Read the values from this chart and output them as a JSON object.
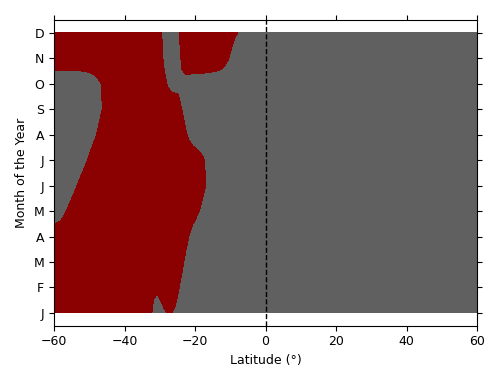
{
  "title": "",
  "xlabel": "Latitude (°)",
  "ylabel": "Month of the Year",
  "lat_min": -60,
  "lat_max": 60,
  "months": [
    "J",
    "F",
    "M",
    "A",
    "M",
    "J",
    "J",
    "A",
    "S",
    "O",
    "N",
    "D"
  ],
  "red_color": "#8B0000",
  "grey_color": "#606060",
  "background_color": "#ffffff",
  "dashed_line_lat": 0,
  "smooth_sigma": 1.5,
  "grid_rows": [
    [
      1,
      1,
      1,
      1,
      1,
      1,
      1,
      1,
      1,
      1,
      1,
      1,
      0,
      0,
      0,
      0,
      0,
      0,
      1,
      1,
      0,
      0,
      0,
      1,
      1,
      1,
      1,
      1,
      0,
      0,
      0,
      0,
      0,
      0,
      0,
      0,
      0,
      0,
      0,
      0,
      0,
      0,
      0,
      0,
      0,
      0,
      0,
      0,
      0,
      0,
      0,
      0,
      0,
      0,
      0,
      0,
      0,
      0,
      0,
      0,
      0,
      0,
      0,
      0,
      0,
      0,
      0,
      0,
      0,
      0,
      0,
      0,
      0,
      0,
      0,
      0,
      0,
      0,
      0,
      0,
      0,
      0,
      0,
      0,
      0,
      0,
      0,
      0,
      0,
      0,
      0,
      0,
      0,
      0,
      0,
      0,
      0,
      0,
      0,
      0,
      0,
      0,
      0,
      0,
      0,
      0,
      0,
      0,
      0,
      0,
      0,
      0,
      0,
      0,
      0,
      0,
      0,
      0,
      0,
      0
    ],
    [
      1,
      1,
      1,
      1,
      1,
      1,
      1,
      1,
      1,
      1,
      1,
      1,
      1,
      1,
      1,
      1,
      1,
      1,
      1,
      1,
      1,
      1,
      1,
      1,
      1,
      1,
      0,
      0,
      0,
      0,
      1,
      1,
      1,
      1,
      1,
      1,
      0,
      0,
      0,
      0,
      0,
      0,
      0,
      0,
      0,
      0,
      0,
      0,
      0,
      0,
      0,
      0,
      0,
      0,
      0,
      0,
      0,
      0,
      0,
      0,
      0,
      0,
      0,
      0,
      0,
      0,
      0,
      0,
      0,
      0,
      0,
      0,
      0,
      0,
      0,
      0,
      0,
      0,
      0,
      0,
      0,
      0,
      0,
      0,
      0,
      0,
      0,
      0,
      0,
      0,
      0,
      0,
      0,
      0,
      0,
      0,
      0,
      0,
      0,
      0,
      0,
      0,
      0,
      0,
      0,
      0,
      0,
      0,
      0,
      0,
      0,
      0,
      0,
      0,
      0,
      0,
      0,
      0,
      0,
      0
    ],
    [
      1,
      1,
      1,
      1,
      1,
      1,
      1,
      1,
      1,
      1,
      1,
      1,
      1,
      1,
      1,
      1,
      1,
      1,
      1,
      1,
      1,
      1,
      1,
      1,
      1,
      1,
      1,
      1,
      1,
      1,
      1,
      1,
      1,
      1,
      1,
      1,
      1,
      0,
      0,
      0,
      0,
      0,
      0,
      0,
      0,
      0,
      0,
      0,
      0,
      0,
      0,
      0,
      0,
      0,
      0,
      0,
      0,
      0,
      0,
      0,
      0,
      0,
      0,
      0,
      0,
      0,
      0,
      0,
      0,
      0,
      0,
      0,
      0,
      0,
      0,
      0,
      0,
      0,
      0,
      0,
      0,
      0,
      0,
      0,
      0,
      0,
      0,
      0,
      0,
      0,
      0,
      0,
      0,
      0,
      0,
      0,
      0,
      0,
      0,
      0,
      0,
      0,
      0,
      0,
      0,
      0,
      0,
      0,
      0,
      0,
      0,
      0,
      0,
      0,
      0,
      0,
      0,
      0,
      0,
      0
    ],
    [
      1,
      1,
      1,
      1,
      1,
      1,
      1,
      1,
      1,
      1,
      1,
      1,
      1,
      1,
      1,
      1,
      1,
      1,
      1,
      1,
      1,
      1,
      1,
      1,
      1,
      1,
      1,
      1,
      1,
      1,
      1,
      1,
      1,
      1,
      1,
      1,
      1,
      1,
      0,
      0,
      0,
      0,
      0,
      0,
      0,
      0,
      0,
      0,
      0,
      0,
      0,
      0,
      0,
      0,
      0,
      0,
      0,
      0,
      0,
      0,
      0,
      0,
      0,
      0,
      0,
      0,
      0,
      0,
      0,
      0,
      0,
      0,
      0,
      0,
      0,
      0,
      0,
      0,
      0,
      0,
      0,
      0,
      0,
      0,
      0,
      0,
      0,
      0,
      0,
      0,
      0,
      0,
      0,
      0,
      0,
      0,
      0,
      0,
      0,
      0,
      0,
      0,
      0,
      0,
      0,
      0,
      0,
      0,
      0,
      0,
      0,
      0,
      0,
      0,
      0,
      0,
      0,
      0,
      0,
      0
    ],
    [
      0,
      0,
      0,
      0,
      1,
      1,
      1,
      1,
      1,
      1,
      1,
      1,
      1,
      1,
      1,
      1,
      1,
      1,
      1,
      1,
      1,
      1,
      1,
      1,
      1,
      1,
      1,
      1,
      1,
      1,
      1,
      1,
      1,
      1,
      1,
      1,
      1,
      1,
      1,
      1,
      1,
      1,
      0,
      0,
      0,
      0,
      0,
      0,
      0,
      0,
      0,
      0,
      0,
      0,
      0,
      0,
      0,
      0,
      0,
      0,
      0,
      0,
      0,
      0,
      0,
      0,
      0,
      0,
      0,
      0,
      0,
      0,
      0,
      0,
      0,
      0,
      0,
      0,
      0,
      0,
      0,
      0,
      0,
      0,
      0,
      0,
      0,
      0,
      0,
      0,
      0,
      0,
      0,
      0,
      0,
      0,
      0,
      0,
      0,
      0,
      0,
      0,
      0,
      0,
      0,
      0,
      0,
      0,
      0,
      0,
      0,
      0,
      0,
      0,
      0,
      0,
      0,
      0,
      0,
      0
    ],
    [
      0,
      0,
      0,
      0,
      0,
      0,
      0,
      1,
      1,
      1,
      1,
      1,
      1,
      1,
      1,
      1,
      1,
      1,
      1,
      1,
      1,
      1,
      1,
      1,
      1,
      1,
      1,
      1,
      1,
      1,
      1,
      1,
      1,
      1,
      1,
      1,
      1,
      1,
      1,
      1,
      1,
      1,
      1,
      1,
      1,
      1,
      1,
      1,
      1,
      1,
      1,
      0,
      0,
      0,
      0,
      0,
      0,
      0,
      0,
      0,
      0,
      0,
      0,
      0,
      0,
      0,
      0,
      0,
      0,
      0,
      0,
      0,
      0,
      0,
      0,
      0,
      0,
      0,
      0,
      0,
      0,
      0,
      0,
      0,
      0,
      0,
      0,
      0,
      0,
      0,
      0,
      0,
      0,
      0,
      0,
      0,
      0,
      0,
      0,
      0,
      0,
      0,
      0,
      0,
      0,
      0,
      0,
      0,
      0,
      0,
      0,
      0,
      0,
      0,
      0,
      0,
      0,
      0,
      0,
      0
    ],
    [
      0,
      0,
      0,
      0,
      0,
      0,
      0,
      0,
      0,
      0,
      1,
      1,
      1,
      1,
      1,
      1,
      1,
      1,
      1,
      1,
      1,
      1,
      1,
      1,
      1,
      1,
      1,
      1,
      1,
      1,
      1,
      1,
      1,
      1,
      1,
      1,
      1,
      1,
      1,
      1,
      1,
      1,
      1,
      1,
      1,
      0,
      0,
      0,
      0,
      0,
      0,
      0,
      0,
      0,
      0,
      0,
      0,
      0,
      0,
      0,
      0,
      0,
      0,
      0,
      0,
      0,
      0,
      0,
      0,
      0,
      0,
      0,
      0,
      0,
      0,
      1,
      0,
      0,
      0,
      0,
      0,
      0,
      0,
      0,
      0,
      0,
      0,
      0,
      0,
      0,
      0,
      0,
      0,
      0,
      0,
      0,
      0,
      0,
      0,
      0,
      0,
      0,
      0,
      0,
      0,
      0,
      0,
      0,
      0,
      0,
      0,
      0,
      0,
      0,
      0,
      0,
      0,
      0,
      0,
      0
    ],
    [
      0,
      0,
      0,
      0,
      0,
      0,
      0,
      0,
      0,
      0,
      0,
      0,
      0,
      1,
      1,
      1,
      1,
      1,
      1,
      1,
      1,
      1,
      1,
      1,
      1,
      1,
      1,
      1,
      1,
      1,
      1,
      1,
      1,
      1,
      1,
      1,
      1,
      0,
      0,
      0,
      0,
      0,
      0,
      0,
      0,
      0,
      0,
      0,
      0,
      0,
      0,
      0,
      0,
      0,
      0,
      0,
      0,
      0,
      0,
      0,
      0,
      0,
      0,
      0,
      0,
      0,
      0,
      0,
      0,
      0,
      0,
      0,
      0,
      0,
      0,
      0,
      0,
      0,
      0,
      0,
      0,
      0,
      0,
      0,
      0,
      0,
      0,
      0,
      0,
      0,
      0,
      0,
      0,
      0,
      0,
      0,
      0,
      0,
      0,
      0,
      0,
      0,
      0,
      0,
      0,
      0,
      0,
      0,
      0,
      0,
      0,
      0,
      0,
      0,
      0,
      0,
      0,
      0,
      0,
      0
    ],
    [
      0,
      0,
      0,
      0,
      0,
      0,
      0,
      0,
      0,
      0,
      0,
      0,
      0,
      0,
      0,
      0,
      1,
      1,
      1,
      1,
      1,
      1,
      1,
      1,
      1,
      1,
      1,
      1,
      1,
      1,
      1,
      1,
      1,
      1,
      1,
      1,
      0,
      0,
      0,
      0,
      0,
      0,
      0,
      0,
      0,
      0,
      0,
      0,
      0,
      0,
      0,
      0,
      0,
      0,
      0,
      0,
      0,
      0,
      0,
      0,
      0,
      0,
      0,
      0,
      0,
      0,
      0,
      0,
      0,
      0,
      0,
      0,
      0,
      0,
      0,
      0,
      0,
      0,
      0,
      0,
      0,
      0,
      0,
      0,
      0,
      0,
      0,
      0,
      0,
      0,
      0,
      0,
      0,
      0,
      0,
      0,
      0,
      0,
      0,
      0,
      0,
      0,
      0,
      0,
      0,
      0,
      0,
      0,
      0,
      0,
      0,
      0,
      0,
      0,
      0,
      0,
      0,
      0,
      0,
      0
    ],
    [
      0,
      0,
      0,
      0,
      0,
      0,
      0,
      0,
      0,
      0,
      0,
      0,
      0,
      0,
      0,
      0,
      0,
      0,
      0,
      0,
      1,
      1,
      1,
      1,
      1,
      1,
      1,
      1,
      1,
      1,
      0,
      0,
      0,
      0,
      0,
      0,
      0,
      0,
      0,
      0,
      0,
      0,
      0,
      0,
      0,
      0,
      0,
      0,
      0,
      0,
      0,
      0,
      0,
      0,
      0,
      0,
      0,
      0,
      0,
      0,
      0,
      0,
      0,
      0,
      0,
      0,
      0,
      0,
      0,
      0,
      0,
      0,
      0,
      0,
      0,
      0,
      0,
      0,
      0,
      0,
      0,
      0,
      0,
      0,
      0,
      0,
      0,
      0,
      0,
      0,
      0,
      0,
      0,
      0,
      0,
      0,
      0,
      0,
      0,
      0,
      0,
      0,
      0,
      0,
      0,
      0,
      0,
      0,
      0,
      0,
      0,
      0,
      0,
      0,
      0,
      0,
      0,
      0,
      0,
      0
    ],
    [
      1,
      1,
      1,
      1,
      1,
      1,
      1,
      1,
      1,
      1,
      1,
      1,
      1,
      1,
      1,
      1,
      1,
      1,
      1,
      1,
      1,
      1,
      1,
      1,
      1,
      1,
      1,
      1,
      1,
      1,
      1,
      1,
      0,
      0,
      0,
      0,
      1,
      1,
      1,
      1,
      1,
      1,
      1,
      1,
      1,
      1,
      1,
      1,
      1,
      1,
      0,
      0,
      0,
      0,
      0,
      0,
      0,
      0,
      0,
      0,
      0,
      0,
      0,
      0,
      0,
      0,
      0,
      0,
      0,
      0,
      0,
      0,
      0,
      0,
      0,
      0,
      0,
      0,
      0,
      0,
      0,
      0,
      0,
      0,
      0,
      0,
      0,
      0,
      0,
      0,
      0,
      0,
      0,
      0,
      0,
      0,
      0,
      0,
      0,
      0,
      0,
      0,
      0,
      0,
      0,
      0,
      0,
      0,
      0,
      0,
      0,
      0,
      0,
      0,
      0,
      0,
      0,
      0,
      0,
      0
    ],
    [
      1,
      1,
      1,
      1,
      1,
      1,
      1,
      1,
      1,
      1,
      1,
      1,
      1,
      1,
      1,
      1,
      1,
      1,
      1,
      1,
      1,
      1,
      1,
      1,
      1,
      1,
      1,
      1,
      1,
      1,
      0,
      0,
      0,
      0,
      0,
      1,
      1,
      1,
      1,
      1,
      1,
      1,
      1,
      1,
      1,
      1,
      1,
      1,
      1,
      1,
      1,
      1,
      1,
      1,
      1,
      1,
      0,
      0,
      0,
      0,
      0,
      0,
      0,
      0,
      0,
      0,
      0,
      0,
      0,
      0,
      0,
      0,
      0,
      0,
      0,
      0,
      0,
      0,
      0,
      0,
      0,
      0,
      0,
      0,
      0,
      0,
      0,
      0,
      0,
      0,
      0,
      0,
      0,
      0,
      0,
      0,
      0,
      0,
      0,
      0,
      0,
      0,
      0,
      0,
      0,
      0,
      0,
      0,
      0,
      0,
      0,
      0,
      0,
      0,
      0,
      0,
      0,
      0,
      0,
      0
    ]
  ]
}
